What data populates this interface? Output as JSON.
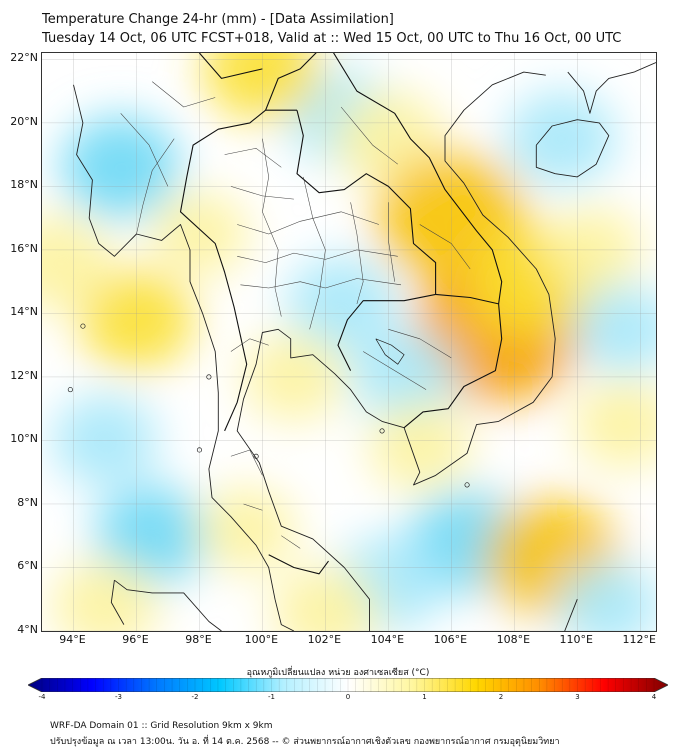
{
  "header": {
    "title_line1": "Temperature Change 24-hr (mm) - [Data Assimilation]",
    "title_line2": "Tuesday 14 Oct, 06 UTC FCST+018, Valid at :: Wed 15 Oct, 00 UTC to Thu 16 Oct, 00 UTC"
  },
  "axes": {
    "lat_labels": [
      "22°N",
      "20°N",
      "18°N",
      "16°N",
      "14°N",
      "12°N",
      "10°N",
      "8°N",
      "6°N",
      "4°N"
    ],
    "lon_labels": [
      "94°E",
      "96°E",
      "98°E",
      "100°E",
      "102°E",
      "104°E",
      "106°E",
      "108°E",
      "110°E",
      "112°E"
    ]
  },
  "colorbar": {
    "label": "อุณหภูมิเปลี่ยนแปลง หน่วย องศาเซลเซียส (°C)",
    "ticks": [
      "-4",
      "-3",
      "-2",
      "-1",
      "0",
      "1",
      "2",
      "3",
      "4"
    ],
    "min": -4,
    "max": 4,
    "colors": [
      "#00007f",
      "#0000ff",
      "#0077ff",
      "#00c8ff",
      "#b4f0ff",
      "#ffffff",
      "#fff7a0",
      "#ffd700",
      "#ff8c00",
      "#ff0000",
      "#7f0000"
    ]
  },
  "footer": {
    "line1": "WRF-DA Domain 01 :: Grid Resolution 9km x 9km",
    "line2": "ปรับปรุงข้อมูล ณ เวลา 13:00น. วัน อ. ที่ 14 ต.ค. 2568 -- © ส่วนพยากรณ์อากาศเชิงตัวเลข กองพยากรณ์อากาศ กรมอุตุนิยมวิทยา"
  },
  "field": {
    "blobs": [
      {
        "lon": 95.5,
        "lat": 18.6,
        "value": -1.2
      },
      {
        "lon": 102.5,
        "lat": 20.2,
        "value": -1.0
      },
      {
        "lon": 104.0,
        "lat": 19.5,
        "value": 1.0
      },
      {
        "lon": 100.0,
        "lat": 21.7,
        "value": 1.2
      },
      {
        "lon": 106.0,
        "lat": 17.0,
        "value": 2.0
      },
      {
        "lon": 107.5,
        "lat": 13.5,
        "value": 2.4
      },
      {
        "lon": 108.5,
        "lat": 15.0,
        "value": 1.4
      },
      {
        "lon": 102.5,
        "lat": 14.3,
        "value": -1.0
      },
      {
        "lon": 104.5,
        "lat": 12.0,
        "value": -0.9
      },
      {
        "lon": 96.0,
        "lat": 13.8,
        "value": 1.1
      },
      {
        "lon": 93.5,
        "lat": 15.6,
        "value": 1.0
      },
      {
        "lon": 95.0,
        "lat": 10.0,
        "value": -0.9
      },
      {
        "lon": 96.5,
        "lat": 7.0,
        "value": -1.1
      },
      {
        "lon": 101.0,
        "lat": 12.0,
        "value": 0.8
      },
      {
        "lon": 105.0,
        "lat": 9.8,
        "value": 0.8
      },
      {
        "lon": 106.5,
        "lat": 6.8,
        "value": -1.2
      },
      {
        "lon": 104.0,
        "lat": 5.5,
        "value": -1.0
      },
      {
        "lon": 109.2,
        "lat": 6.3,
        "value": 1.6
      },
      {
        "lon": 109.5,
        "lat": 19.5,
        "value": -1.0
      },
      {
        "lon": 110.5,
        "lat": 16.0,
        "value": 0.7
      },
      {
        "lon": 111.5,
        "lat": 10.5,
        "value": 0.8
      },
      {
        "lon": 98.0,
        "lat": 16.5,
        "value": 0.7
      },
      {
        "lon": 102.0,
        "lat": 4.6,
        "value": 0.9
      },
      {
        "lon": 95.0,
        "lat": 4.8,
        "value": 0.9
      },
      {
        "lon": 99.5,
        "lat": 7.2,
        "value": 0.7
      },
      {
        "lon": 111.5,
        "lat": 13.5,
        "value": -0.8
      },
      {
        "lon": 111.0,
        "lat": 4.8,
        "value": -0.8
      }
    ]
  }
}
